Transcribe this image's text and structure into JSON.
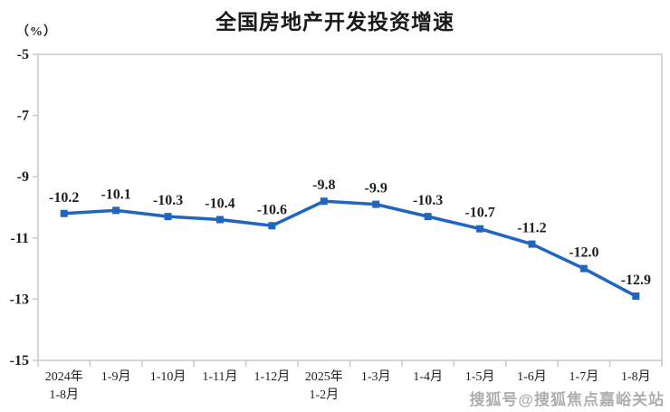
{
  "page": {
    "title": "全国房地产开发投资增速",
    "unit_label": "（%）",
    "watermark": "搜狐号@搜狐焦点嘉峪关站"
  },
  "colors": {
    "line": "#2166BE",
    "marker": "#2166BE",
    "text": "#1f1f1f",
    "border": "#c9c9c9",
    "watermark": "#a6a6a6",
    "background": "#ffffff"
  },
  "chart_data": {
    "type": "line",
    "title": "全国房地产开发投资增速",
    "ylabel": "（%）",
    "categories": [
      "2024年\n1-8月",
      "1-9月",
      "1-10月",
      "1-11月",
      "1-12月",
      "2025年\n1-2月",
      "1-3月",
      "1-4月",
      "1-5月",
      "1-6月",
      "1-7月",
      "1-8月"
    ],
    "values": [
      -10.2,
      -10.1,
      -10.3,
      -10.4,
      -10.6,
      -9.8,
      -9.9,
      -10.3,
      -10.7,
      -11.2,
      -12.0,
      -12.9
    ],
    "data_labels": [
      "-10.2",
      "-10.1",
      "-10.3",
      "-10.4",
      "-10.6",
      "-9.8",
      "-9.9",
      "-10.3",
      "-10.7",
      "-11.2",
      "-12.0",
      "-12.9"
    ],
    "y_ticks": [
      -5,
      -7,
      -9,
      -11,
      -13,
      -15
    ],
    "ylim": [
      -15,
      -5
    ],
    "grid": false,
    "legend": false,
    "marker_shape": "square",
    "line_width": 3.5,
    "data_label_position": "above"
  }
}
